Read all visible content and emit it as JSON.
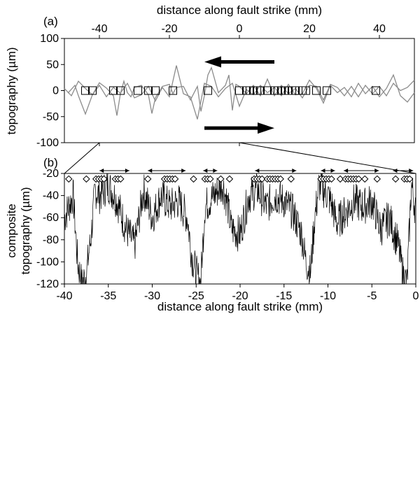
{
  "figure": {
    "panel_a_label": "(a)",
    "panel_b_label": "(b)"
  },
  "chart_data": [
    {
      "type": "line",
      "panel": "(a)",
      "xlabel": "distance along fault strike (mm)",
      "ylabel": "topography (µm)",
      "xlim": [
        -50,
        50
      ],
      "ylim": [
        -100,
        100
      ],
      "x_ticks": [
        -40,
        -20,
        0,
        20,
        40
      ],
      "y_ticks": [
        100,
        50,
        0,
        -50,
        -100
      ],
      "x_axis_position": "top",
      "colors": {
        "profiles": "#8c8c8c",
        "markers": "#000000"
      },
      "arrows": [
        {
          "direction": "left",
          "y": 55,
          "x_from": 10,
          "x_to": -10
        },
        {
          "direction": "right",
          "y": -72,
          "x_from": -10,
          "x_to": 10
        }
      ],
      "series": [
        {
          "x": [
            -49,
            -47,
            -46,
            -44,
            -42,
            -40,
            -38,
            -36,
            -35,
            -34,
            -33,
            -32,
            -31,
            -30,
            -28,
            -26,
            -25,
            -24,
            -22,
            -20,
            -19,
            -18,
            -16,
            -14,
            -12,
            -11,
            -10,
            -9,
            -8,
            -6,
            -4,
            -3,
            -2,
            -1,
            0,
            2,
            4,
            6,
            8,
            10,
            12,
            14,
            16,
            18,
            20,
            22,
            24,
            26,
            28,
            30,
            32,
            34,
            36,
            38,
            40,
            42,
            44,
            46,
            48,
            50
          ],
          "y": [
            -5,
            10,
            -10,
            -45,
            -8,
            15,
            5,
            -10,
            -48,
            -6,
            18,
            -4,
            -12,
            6,
            10,
            -8,
            -44,
            -14,
            8,
            12,
            -6,
            6,
            8,
            -18,
            8,
            -40,
            -10,
            30,
            44,
            -4,
            10,
            30,
            -38,
            12,
            8,
            -6,
            10,
            -10,
            22,
            -10,
            10,
            -6,
            4,
            -14,
            10,
            8,
            -18,
            12,
            6,
            -10,
            8,
            -12,
            10,
            -6,
            8,
            -10,
            14,
            0,
            6,
            20
          ]
        },
        {
          "x": [
            -50,
            -48,
            -46,
            -44,
            -42,
            -40,
            -38,
            -36,
            -34,
            -32,
            -30,
            -28,
            -26,
            -24,
            -22,
            -20,
            -18,
            -16,
            -14,
            -12,
            -10,
            -8,
            -6,
            -4,
            -2,
            0,
            2,
            4,
            6,
            8,
            10,
            12,
            14,
            16,
            18,
            20,
            22,
            24,
            26,
            28,
            30,
            32,
            34,
            36,
            38,
            40,
            42,
            44,
            46,
            48,
            50
          ],
          "y": [
            4,
            -10,
            18,
            4,
            -8,
            10,
            -12,
            6,
            -5,
            14,
            -14,
            -8,
            8,
            -20,
            6,
            -12,
            48,
            -6,
            -12,
            -55,
            14,
            8,
            -12,
            4,
            14,
            -30,
            2,
            -8,
            10,
            -4,
            6,
            -10,
            12,
            -8,
            -6,
            20,
            4,
            -24,
            10,
            -4,
            6,
            -12,
            14,
            -6,
            8,
            -12,
            4,
            30,
            -10,
            -22,
            -4
          ]
        }
      ],
      "marker_positions": [
        -44,
        -42,
        -36,
        -34,
        -29,
        -26,
        -24,
        -19,
        -9,
        0,
        2,
        3,
        4,
        5,
        6,
        8,
        10,
        11,
        12,
        13,
        14,
        15,
        16,
        18,
        19,
        22,
        25,
        39
      ]
    },
    {
      "type": "line",
      "panel": "(b)",
      "xlabel": "distance along fault strike (mm)",
      "ylabel": "composite topography (µm)",
      "xlim": [
        -40,
        0
      ],
      "ylim": [
        -120,
        -20
      ],
      "x_ticks": [
        -40,
        -35,
        -30,
        -25,
        -20,
        -15,
        -10,
        -5,
        0
      ],
      "y_ticks": [
        -20,
        -40,
        -60,
        -80,
        -100,
        -120
      ],
      "colors": {
        "trace": "#000000"
      },
      "zoom_from_panel_a": [
        -40,
        0
      ],
      "trace_envelope": {
        "x": [
          -40,
          -39,
          -38.5,
          -38,
          -37.5,
          -37,
          -36.5,
          -36,
          -35,
          -34,
          -33,
          -32,
          -31,
          -30,
          -29,
          -28,
          -27,
          -26,
          -25.5,
          -25,
          -24.5,
          -24,
          -23,
          -22,
          -21.5,
          -21,
          -20,
          -19,
          -18,
          -17,
          -16,
          -15,
          -14,
          -13,
          -12.5,
          -12,
          -11.5,
          -11,
          -10.5,
          -10,
          -9.5,
          -9,
          -8,
          -7,
          -6,
          -5,
          -4,
          -3,
          -2,
          -1.5,
          -1,
          -0.5,
          0
        ],
        "y": [
          -60,
          -40,
          -100,
          -120,
          -110,
          -80,
          -35,
          -40,
          -30,
          -45,
          -70,
          -85,
          -35,
          -60,
          -40,
          -50,
          -45,
          -60,
          -95,
          -110,
          -120,
          -50,
          -40,
          -30,
          -45,
          -70,
          -75,
          -40,
          -35,
          -50,
          -40,
          -45,
          -55,
          -75,
          -100,
          -110,
          -60,
          -30,
          -35,
          -40,
          -50,
          -65,
          -55,
          -45,
          -50,
          -45,
          -70,
          -60,
          -85,
          -110,
          -120,
          -30,
          -55
        ]
      },
      "diamond_positions": [
        -39.5,
        -37.5,
        -36.4,
        -36.1,
        -35.8,
        -35.5,
        -34.2,
        -33.9,
        -33.6,
        -30.5,
        -28.6,
        -28.3,
        -28,
        -27.7,
        -27.4,
        -25.3,
        -24,
        -23.7,
        -23.4,
        -22.2,
        -21.2,
        -18.4,
        -18.1,
        -17.8,
        -17.5,
        -16.9,
        -16.6,
        -16.3,
        -16,
        -15.7,
        -15.4,
        -14.2,
        -10.8,
        -10.5,
        -10.2,
        -9.9,
        -9.6,
        -8.6,
        -8,
        -7.7,
        -7.4,
        -7.1,
        -6.8,
        -6.5,
        -5.8,
        -4.4,
        -2.3,
        -1.3,
        -1,
        -0.7
      ],
      "range_arrows": [
        [
          -36,
          -32.6
        ],
        [
          -30.5,
          -26.2
        ],
        [
          -24.2,
          -22.6
        ],
        [
          -18.3,
          -13.6
        ],
        [
          -10.8,
          -9.2
        ],
        [
          -8.2,
          -4.2
        ],
        [
          -2.6,
          -0.3
        ]
      ]
    }
  ]
}
